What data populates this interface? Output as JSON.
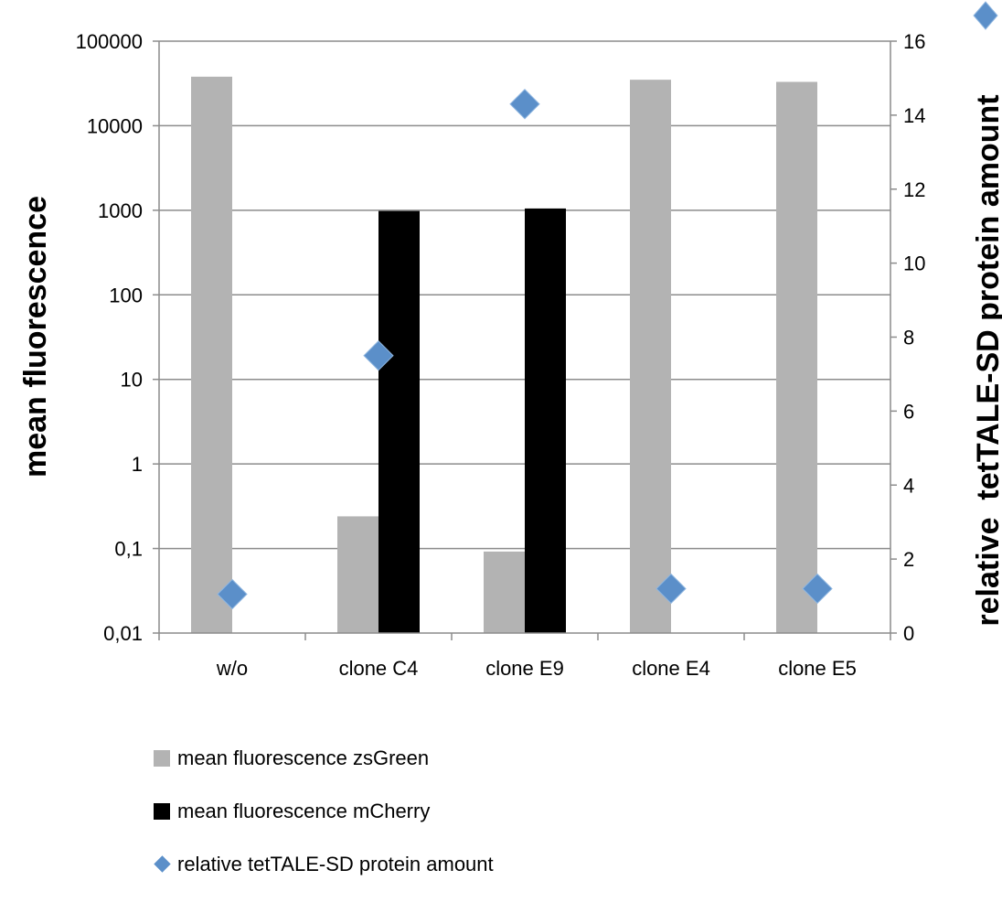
{
  "chart_data": {
    "type": "bar",
    "categories": [
      "w/o",
      "clone C4",
      "clone E9",
      "clone E4",
      "clone E5"
    ],
    "y_left": {
      "label": "mean fluorescence",
      "scale": "log",
      "range": [
        0.01,
        100000
      ],
      "ticks": [
        0.01,
        0.1,
        1,
        10,
        100,
        1000,
        10000,
        100000
      ],
      "tick_labels": [
        "0,01",
        "0,1",
        "1",
        "10",
        "100",
        "1000",
        "10000",
        "100000"
      ]
    },
    "y_right": {
      "label": "relative  tetTALE-SD protein amount",
      "scale": "linear",
      "range": [
        0,
        16
      ],
      "ticks": [
        0,
        2,
        4,
        6,
        8,
        10,
        12,
        14,
        16
      ],
      "tick_labels": [
        "0",
        "2",
        "4",
        "6",
        "8",
        "10",
        "12",
        "14",
        "16"
      ]
    },
    "grid": true,
    "legend_position": "bottom",
    "series": [
      {
        "name": "mean fluorescence zsGreen",
        "type": "bar",
        "axis": "left",
        "color": "#b3b3b3",
        "values": [
          38000,
          0.24,
          0.092,
          35000,
          33000
        ]
      },
      {
        "name": "mean fluorescence mCherry",
        "type": "bar",
        "axis": "left",
        "color": "#000000",
        "values": [
          null,
          980,
          1050,
          null,
          null
        ]
      },
      {
        "name": "relative tetTALE-SD protein amount",
        "type": "scatter",
        "axis": "right",
        "color": "#5b8fc9",
        "marker": "diamond",
        "values": [
          1.05,
          7.5,
          14.3,
          1.2,
          1.2
        ]
      }
    ]
  }
}
